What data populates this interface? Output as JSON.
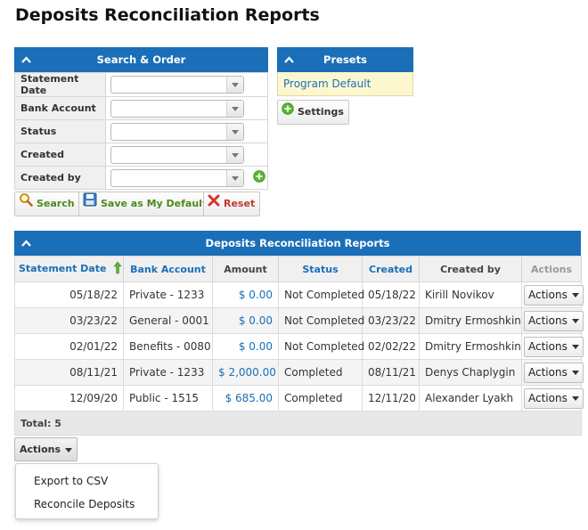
{
  "page": {
    "title": "Deposits Reconciliation Reports"
  },
  "search": {
    "header": "Search & Order",
    "fields": [
      {
        "label": "Statement Date",
        "value": ""
      },
      {
        "label": "Bank Account",
        "value": ""
      },
      {
        "label": "Status",
        "value": ""
      },
      {
        "label": "Created",
        "value": ""
      },
      {
        "label": "Created by",
        "value": ""
      }
    ],
    "buttons": {
      "search": "Search",
      "save_default": "Save as My Default",
      "reset": "Reset"
    }
  },
  "presets": {
    "header": "Presets",
    "items": [
      "Program Default"
    ],
    "settings_label": "Settings"
  },
  "reports": {
    "header": "Deposits Reconciliation Reports",
    "columns": [
      "Statement Date",
      "Bank Account",
      "Amount",
      "Status",
      "Created",
      "Created by",
      "Actions"
    ],
    "rows": [
      {
        "statement_date": "05/18/22",
        "bank_account": "Private - 1233",
        "amount": "$ 0.00",
        "status": "Not Completed",
        "created": "05/18/22",
        "created_by": "Kirill Novikov",
        "actions": "Actions"
      },
      {
        "statement_date": "03/23/22",
        "bank_account": "General - 0001",
        "amount": "$ 0.00",
        "status": "Not Completed",
        "created": "03/23/22",
        "created_by": "Dmitry Ermoshkin",
        "actions": "Actions"
      },
      {
        "statement_date": "02/01/22",
        "bank_account": "Benefits - 0080",
        "amount": "$ 0.00",
        "status": "Not Completed",
        "created": "02/02/22",
        "created_by": "Dmitry Ermoshkin",
        "actions": "Actions"
      },
      {
        "statement_date": "08/11/21",
        "bank_account": "Private - 1233",
        "amount": "$ 2,000.00",
        "status": "Completed",
        "created": "08/11/21",
        "created_by": "Denys Chaplygin",
        "actions": "Actions"
      },
      {
        "statement_date": "12/09/20",
        "bank_account": "Public - 1515",
        "amount": "$ 685.00",
        "status": "Completed",
        "created": "12/11/20",
        "created_by": "Alexander Lyakh",
        "actions": "Actions"
      }
    ],
    "total": "Total: 5"
  },
  "bulk_actions": {
    "label": "Actions",
    "menu": [
      "Export to CSV",
      "Reconcile Deposits"
    ]
  },
  "colors": {
    "header_blue": "#1a6fb8",
    "preset_bg": "#fdf7d0",
    "link_blue": "#1a6fb8",
    "sort_arrow_green": "#3fa535"
  }
}
